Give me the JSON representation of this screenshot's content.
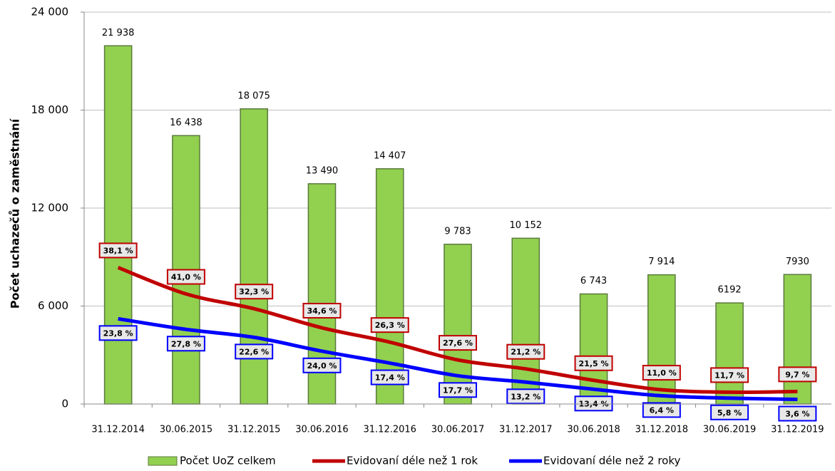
{
  "chart_data": {
    "type": "bar",
    "y_label": "Počet uchazečů o zaměstnání",
    "categories": [
      "31.12.2014",
      "30.06.2015",
      "31.12.2015",
      "30.06.2016",
      "31.12.2016",
      "30.06.2017",
      "31.12.2017",
      "30.06.2018",
      "31.12.2018",
      "30.06.2019",
      "31.12.2019"
    ],
    "ylim": [
      0,
      24000
    ],
    "yticks": [
      0,
      {
        "value": 6000,
        "label": "6 000"
      },
      {
        "value": 12000,
        "label": "12 000"
      },
      {
        "value": 18000,
        "label": "18 000"
      },
      {
        "value": 24000,
        "label": "24 000"
      }
    ],
    "grid": true,
    "legend": "bottom",
    "series": [
      {
        "name": "Počet UoZ celkem",
        "type": "bar",
        "color": "#92d050",
        "edge": "#5a7a3a",
        "values": [
          21938,
          16438,
          18075,
          13490,
          14407,
          9783,
          10152,
          6743,
          7914,
          6192,
          7930
        ],
        "value_labels": [
          "21 938",
          "16 438",
          "18 075",
          "13 490",
          "14 407",
          "9 783",
          "10 152",
          "6 743",
          "7 914",
          "6192",
          "7930"
        ]
      },
      {
        "name": "Evidovaní déle než 1 rok",
        "type": "line",
        "color": "#c00000",
        "values": [
          8358,
          6740,
          5838,
          4668,
          3789,
          2700,
          2152,
          1450,
          871,
          724,
          769
        ],
        "share_labels": [
          "38,1 %",
          "41,0 %",
          "32,3 %",
          "34,6 %",
          "26,3 %",
          "27,6 %",
          "21,2 %",
          "21,5 %",
          "11,0 %",
          "11,7 %",
          "9,7 %"
        ]
      },
      {
        "name": "Evidovaní déle než 2 roky",
        "type": "line",
        "color": "#0000ff",
        "values": [
          5221,
          4570,
          4085,
          3238,
          2507,
          1732,
          1340,
          904,
          506,
          359,
          285
        ],
        "share_labels": [
          "23,8 %",
          "27,8 %",
          "22,6 %",
          "24,0 %",
          "17,4 %",
          "17,7 %",
          "13,2 %",
          "13,4 %",
          "6,4 %",
          "5,8 %",
          "3,6 %"
        ]
      }
    ]
  }
}
